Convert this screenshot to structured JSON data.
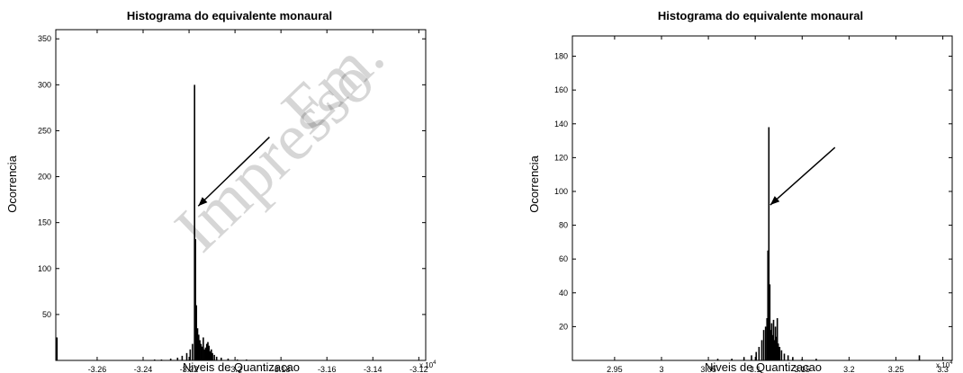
{
  "watermark": {
    "line1": "Impresso",
    "line2": "Em."
  },
  "chart_data": [
    {
      "type": "bar",
      "title": "Histograma do equivalente monaural",
      "xlabel": "Niveis de Quantizacao",
      "ylabel": "Ocorrencia",
      "x_multiplier_label": "x 10",
      "x_multiplier_exp": "4",
      "xlim": [
        -3.278,
        -3.117
      ],
      "ylim": [
        0,
        360
      ],
      "xticks": [
        -3.26,
        -3.24,
        -3.22,
        -3.2,
        -3.18,
        -3.16,
        -3.14,
        -3.12
      ],
      "xtick_labels": [
        "-3.26",
        "-3.24",
        "-3.22",
        "-3.2",
        "-3.18",
        "-3.16",
        "-3.14",
        "-3.12"
      ],
      "yticks": [
        50,
        100,
        150,
        200,
        250,
        300,
        350
      ],
      "ytick_labels": [
        "50",
        "100",
        "150",
        "200",
        "250",
        "300",
        "350"
      ],
      "bars": [
        {
          "x": -3.2775,
          "y": 25
        },
        {
          "x": -3.235,
          "y": 1
        },
        {
          "x": -3.232,
          "y": 1
        },
        {
          "x": -3.228,
          "y": 2
        },
        {
          "x": -3.225,
          "y": 3
        },
        {
          "x": -3.223,
          "y": 5
        },
        {
          "x": -3.221,
          "y": 8
        },
        {
          "x": -3.2195,
          "y": 12
        },
        {
          "x": -3.2185,
          "y": 18
        },
        {
          "x": -3.2176,
          "y": 300
        },
        {
          "x": -3.2172,
          "y": 132
        },
        {
          "x": -3.2168,
          "y": 60
        },
        {
          "x": -3.2163,
          "y": 35
        },
        {
          "x": -3.2158,
          "y": 28
        },
        {
          "x": -3.2153,
          "y": 22
        },
        {
          "x": -3.2148,
          "y": 18
        },
        {
          "x": -3.2143,
          "y": 15
        },
        {
          "x": -3.2138,
          "y": 25
        },
        {
          "x": -3.2133,
          "y": 12
        },
        {
          "x": -3.2128,
          "y": 14
        },
        {
          "x": -3.2123,
          "y": 18
        },
        {
          "x": -3.2118,
          "y": 20
        },
        {
          "x": -3.2113,
          "y": 16
        },
        {
          "x": -3.2108,
          "y": 10
        },
        {
          "x": -3.2103,
          "y": 12
        },
        {
          "x": -3.2098,
          "y": 8
        },
        {
          "x": -3.209,
          "y": 6
        },
        {
          "x": -3.208,
          "y": 4
        },
        {
          "x": -3.206,
          "y": 3
        },
        {
          "x": -3.203,
          "y": 2
        },
        {
          "x": -3.199,
          "y": 1
        },
        {
          "x": -3.195,
          "y": 1
        }
      ],
      "arrow": {
        "from": [
          -3.185,
          243
        ],
        "to": [
          -3.216,
          168
        ]
      },
      "grid": false
    },
    {
      "type": "bar",
      "title": "Histograma do equivalente monaural",
      "xlabel": "Niveis de Quantizacao",
      "ylabel": "Ocorrencia",
      "x_multiplier_label": "x 10",
      "x_multiplier_exp": "4",
      "xlim": [
        2.905,
        3.31
      ],
      "ylim": [
        0,
        192
      ],
      "xticks": [
        2.95,
        3.0,
        3.05,
        3.1,
        3.15,
        3.2,
        3.25,
        3.3
      ],
      "xtick_labels": [
        "2.95",
        "3",
        "3.05",
        "3.1",
        "3.15",
        "3.2",
        "3.25",
        "3.3"
      ],
      "yticks": [
        20,
        40,
        60,
        80,
        100,
        120,
        140,
        160,
        180
      ],
      "ytick_labels": [
        "20",
        "40",
        "60",
        "80",
        "100",
        "120",
        "140",
        "160",
        "180"
      ],
      "bars": [
        {
          "x": 3.06,
          "y": 1
        },
        {
          "x": 3.075,
          "y": 1
        },
        {
          "x": 3.088,
          "y": 2
        },
        {
          "x": 3.096,
          "y": 3
        },
        {
          "x": 3.101,
          "y": 5
        },
        {
          "x": 3.104,
          "y": 8
        },
        {
          "x": 3.107,
          "y": 12
        },
        {
          "x": 3.109,
          "y": 18
        },
        {
          "x": 3.111,
          "y": 20
        },
        {
          "x": 3.1125,
          "y": 25
        },
        {
          "x": 3.1135,
          "y": 65
        },
        {
          "x": 3.1145,
          "y": 138
        },
        {
          "x": 3.1155,
          "y": 45
        },
        {
          "x": 3.1165,
          "y": 18
        },
        {
          "x": 3.1175,
          "y": 22
        },
        {
          "x": 3.1185,
          "y": 15
        },
        {
          "x": 3.1195,
          "y": 24
        },
        {
          "x": 3.1205,
          "y": 12
        },
        {
          "x": 3.1215,
          "y": 20
        },
        {
          "x": 3.1225,
          "y": 14
        },
        {
          "x": 3.1235,
          "y": 25
        },
        {
          "x": 3.1245,
          "y": 10
        },
        {
          "x": 3.126,
          "y": 8
        },
        {
          "x": 3.128,
          "y": 6
        },
        {
          "x": 3.131,
          "y": 4
        },
        {
          "x": 3.135,
          "y": 3
        },
        {
          "x": 3.14,
          "y": 2
        },
        {
          "x": 3.15,
          "y": 1
        },
        {
          "x": 3.165,
          "y": 1
        },
        {
          "x": 3.275,
          "y": 3
        }
      ],
      "arrow": {
        "from": [
          3.185,
          126
        ],
        "to": [
          3.116,
          92
        ]
      },
      "grid": false
    }
  ]
}
